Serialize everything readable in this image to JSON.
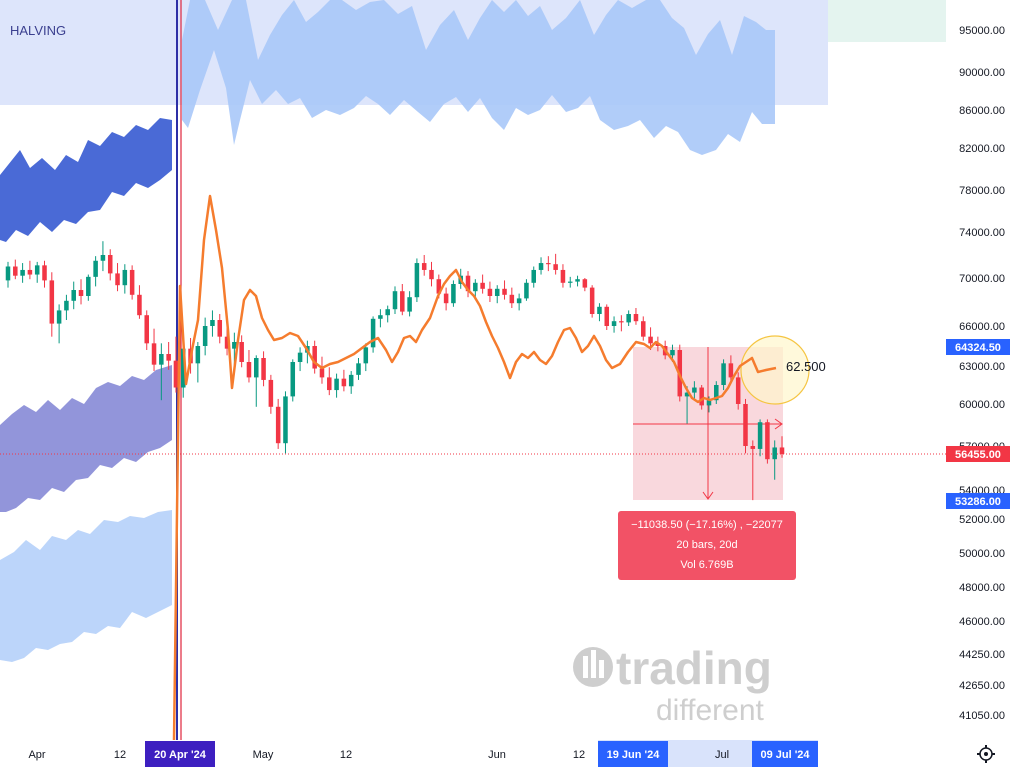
{
  "chart_data": {
    "type": "candlestick",
    "indicator_label": "HALVING",
    "y_axis": {
      "ticks": [
        "95000.00",
        "90000.00",
        "86000.00",
        "82000.00",
        "78000.00",
        "74000.00",
        "70000.00",
        "66000.00",
        "63000.00",
        "60000.00",
        "57000.00",
        "54000.00",
        "52000.00",
        "50000.00",
        "48000.00",
        "46000.00",
        "44250.00",
        "42650.00",
        "41050.00"
      ]
    },
    "x_axis": {
      "ticks": [
        "Apr",
        "12",
        "May",
        "12",
        "Jun",
        "12",
        "Jul"
      ],
      "highlighted_dates": [
        "20 Apr '24",
        "19 Jun '24",
        "09 Jul '24"
      ]
    },
    "price_badges": [
      {
        "value": "64324.50",
        "color": "#2962ff"
      },
      {
        "value": "56455.00",
        "color": "#f23645"
      },
      {
        "value": "53286.00",
        "color": "#2962ff"
      }
    ],
    "measurement": {
      "line1": "−11038.50 (−17.16%) , −22077",
      "line2": "20 bars, 20d",
      "line3": "Vol 6.769B"
    },
    "annotation": "62.500",
    "watermark": {
      "line1": "trading",
      "line2": "different"
    },
    "colors": {
      "up": "#089981",
      "down": "#f23645",
      "oscillator": "#f57c2e",
      "band_dark": "#4a6ad6",
      "band_light": "#a9c8f8",
      "band_purple": "#8c8fd8"
    },
    "candles": [
      [
        69800,
        71400,
        69200,
        71000
      ],
      [
        71000,
        71600,
        69900,
        70200
      ],
      [
        70200,
        71300,
        69600,
        70700
      ],
      [
        70700,
        71500,
        69900,
        70300
      ],
      [
        70300,
        71400,
        69600,
        71100
      ],
      [
        71100,
        71500,
        69200,
        69800
      ],
      [
        69800,
        70500,
        65200,
        66200
      ],
      [
        66200,
        67800,
        64700,
        67300
      ],
      [
        67300,
        68600,
        66500,
        68100
      ],
      [
        68100,
        69700,
        67400,
        69000
      ],
      [
        69000,
        69900,
        67800,
        68500
      ],
      [
        68500,
        70300,
        68100,
        70100
      ],
      [
        70100,
        71900,
        69300,
        71500
      ],
      [
        71500,
        73200,
        70600,
        72000
      ],
      [
        72000,
        72500,
        69800,
        70400
      ],
      [
        70400,
        71300,
        68900,
        69400
      ],
      [
        69400,
        71200,
        68700,
        70700
      ],
      [
        70700,
        71100,
        68200,
        68600
      ],
      [
        68600,
        69400,
        66600,
        66900
      ],
      [
        66900,
        67300,
        64200,
        64700
      ],
      [
        64700,
        65800,
        62600,
        63100
      ],
      [
        63100,
        64700,
        60300,
        63900
      ],
      [
        63900,
        64800,
        62700,
        63400
      ],
      [
        63400,
        65200,
        60900,
        61300
      ],
      [
        61300,
        64700,
        60500,
        64300
      ],
      [
        64300,
        65100,
        62400,
        63200
      ],
      [
        63200,
        64800,
        61700,
        64500
      ],
      [
        64500,
        66700,
        63800,
        66000
      ],
      [
        66000,
        67300,
        65200,
        66500
      ],
      [
        66500,
        67000,
        64700,
        65200
      ],
      [
        65200,
        66200,
        63800,
        64300
      ],
      [
        64300,
        65500,
        63100,
        64800
      ],
      [
        64800,
        65300,
        62900,
        63300
      ],
      [
        63300,
        64200,
        61700,
        62100
      ],
      [
        62100,
        63800,
        59800,
        63600
      ],
      [
        63600,
        64100,
        61400,
        61900
      ],
      [
        61900,
        62300,
        59300,
        59800
      ],
      [
        59800,
        60400,
        56800,
        57200
      ],
      [
        57200,
        61000,
        56500,
        60600
      ],
      [
        60600,
        63500,
        60200,
        63300
      ],
      [
        63300,
        64400,
        62600,
        64000
      ],
      [
        64000,
        64900,
        63200,
        64500
      ],
      [
        64500,
        64900,
        62400,
        62800
      ],
      [
        62800,
        63700,
        61600,
        62100
      ],
      [
        62100,
        62900,
        60700,
        61100
      ],
      [
        61100,
        62400,
        60500,
        62000
      ],
      [
        62000,
        62700,
        61000,
        61400
      ],
      [
        61400,
        62600,
        60800,
        62300
      ],
      [
        62300,
        63600,
        61900,
        63200
      ],
      [
        63200,
        64700,
        62600,
        64400
      ],
      [
        64400,
        66800,
        64000,
        66600
      ],
      [
        66600,
        67400,
        65900,
        66900
      ],
      [
        66900,
        67700,
        66300,
        67400
      ],
      [
        67400,
        69300,
        67000,
        68900
      ],
      [
        68900,
        69500,
        66900,
        67200
      ],
      [
        67200,
        68900,
        66800,
        68400
      ],
      [
        68400,
        71700,
        68000,
        71300
      ],
      [
        71300,
        72000,
        70200,
        70700
      ],
      [
        70700,
        71400,
        69300,
        69900
      ],
      [
        69900,
        70300,
        68300,
        68700
      ],
      [
        68700,
        69200,
        67300,
        67900
      ],
      [
        67900,
        69800,
        67600,
        69500
      ],
      [
        69500,
        70800,
        69100,
        70200
      ],
      [
        70200,
        70600,
        68400,
        68900
      ],
      [
        68900,
        69900,
        68200,
        69600
      ],
      [
        69600,
        70300,
        68700,
        69100
      ],
      [
        69100,
        69700,
        68000,
        68500
      ],
      [
        68500,
        69400,
        67900,
        69100
      ],
      [
        69100,
        69800,
        68200,
        68600
      ],
      [
        68600,
        69200,
        67500,
        67900
      ],
      [
        67900,
        68700,
        67300,
        68300
      ],
      [
        68300,
        69900,
        68100,
        69600
      ],
      [
        69600,
        71000,
        69200,
        70700
      ],
      [
        70700,
        71800,
        70300,
        71300
      ],
      [
        71300,
        71900,
        70600,
        71200
      ],
      [
        71200,
        72100,
        70300,
        70700
      ],
      [
        70700,
        71200,
        69200,
        69600
      ],
      [
        69600,
        70100,
        69200,
        69700
      ],
      [
        69700,
        70200,
        69300,
        69900
      ],
      [
        69900,
        70000,
        68900,
        69200
      ],
      [
        69200,
        69400,
        66700,
        67000
      ],
      [
        67000,
        67900,
        66400,
        67600
      ],
      [
        67600,
        67800,
        65700,
        66000
      ],
      [
        66000,
        66800,
        65500,
        66400
      ],
      [
        66400,
        66900,
        65600,
        66300
      ],
      [
        66300,
        67300,
        66000,
        67000
      ],
      [
        67000,
        67500,
        66100,
        66400
      ],
      [
        66400,
        66800,
        64900,
        65200
      ],
      [
        65200,
        65900,
        64200,
        64700
      ],
      [
        64700,
        65200,
        64100,
        64500
      ],
      [
        64500,
        64900,
        63500,
        63800
      ],
      [
        63800,
        64600,
        63300,
        64200
      ],
      [
        64200,
        64600,
        60200,
        60600
      ],
      [
        60600,
        61400,
        58600,
        60900
      ],
      [
        60900,
        61800,
        60400,
        61300
      ],
      [
        61300,
        61500,
        59600,
        59900
      ],
      [
        59900,
        60600,
        59400,
        60300
      ],
      [
        60300,
        61800,
        60000,
        61500
      ],
      [
        61500,
        63500,
        61100,
        63200
      ],
      [
        63200,
        63800,
        61700,
        62100
      ],
      [
        62100,
        62500,
        59600,
        60000
      ],
      [
        60000,
        60400,
        56500,
        57000
      ],
      [
        57000,
        57400,
        53300,
        56800
      ],
      [
        56800,
        58900,
        56300,
        58700
      ],
      [
        58700,
        58900,
        55800,
        56100
      ],
      [
        56100,
        57400,
        54700,
        56900
      ],
      [
        56900,
        57700,
        56200,
        56455
      ]
    ]
  }
}
